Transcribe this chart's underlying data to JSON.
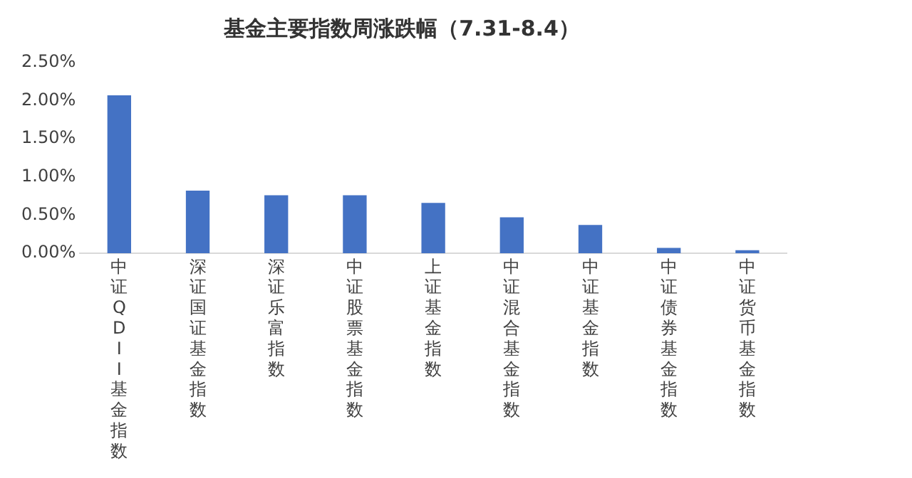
{
  "chart_data": {
    "type": "bar",
    "title": "基金主要指数周涨跌幅（7.31-8.4）",
    "categories": [
      "中证QDII基金指数",
      "深证国证基金指数",
      "深证乐富指数",
      "中证股票基金指数",
      "上证基金指数",
      "中证混合基金指数",
      "中证基金指数",
      "中证债券基金指数",
      "中证货币基金指数"
    ],
    "values": [
      2.07,
      0.82,
      0.76,
      0.76,
      0.66,
      0.47,
      0.37,
      0.07,
      0.04
    ],
    "color": "#4472c4",
    "ylim": [
      0,
      2.5
    ],
    "yticks": [
      {
        "value": 0,
        "label": "0.00%"
      },
      {
        "value": 0.5,
        "label": "0.50%"
      },
      {
        "value": 1,
        "label": "1.00%"
      },
      {
        "value": 1.5,
        "label": "1.50%"
      },
      {
        "value": 2,
        "label": "2.00%"
      },
      {
        "value": 2.5,
        "label": "2.50%"
      }
    ],
    "grid": false,
    "legend": false
  }
}
